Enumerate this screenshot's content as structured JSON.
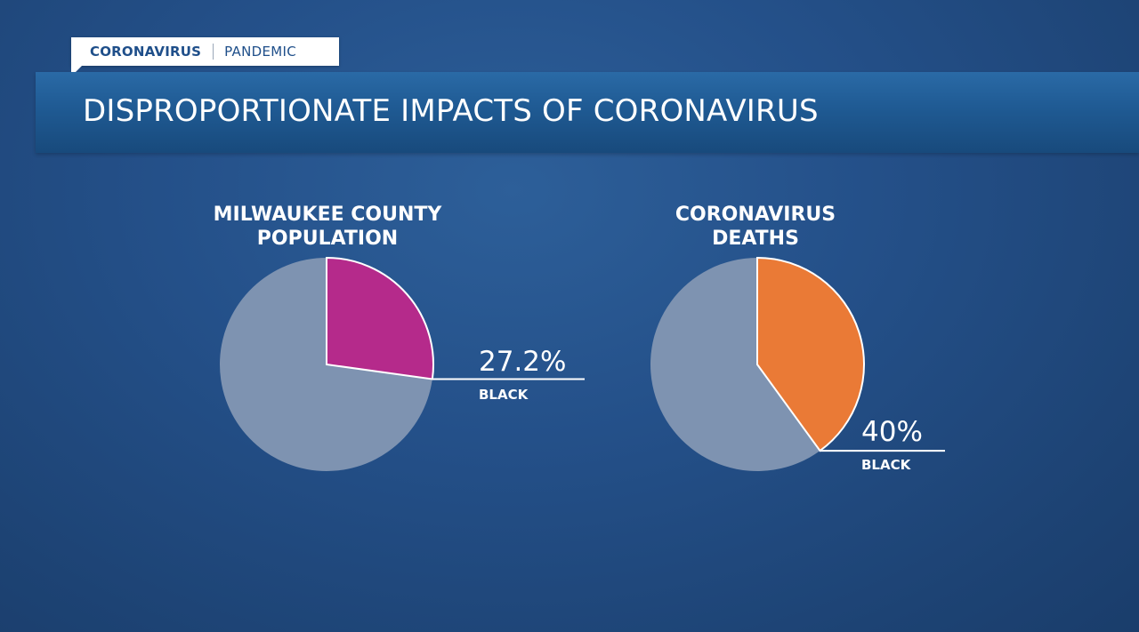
{
  "header": {
    "tag_primary": "CORONAVIRUS",
    "tag_secondary": "PANDEMIC",
    "title": "DISPROPORTIONATE IMPACTS OF CORONAVIRUS"
  },
  "colors": {
    "rest": "#7e93b1",
    "population_highlight": "#b52a8b",
    "deaths_highlight": "#ea7a36"
  },
  "chart_data": [
    {
      "type": "pie",
      "title_lines": [
        "MILWAUKEE COUNTY",
        "POPULATION"
      ],
      "highlight": {
        "label": "BLACK",
        "value": 27.2,
        "display": "27.2%"
      },
      "rest_value": 72.8
    },
    {
      "type": "pie",
      "title_lines": [
        "CORONAVIRUS",
        "DEATHS"
      ],
      "highlight": {
        "label": "BLACK",
        "value": 40,
        "display": "40%"
      },
      "rest_value": 60
    }
  ]
}
